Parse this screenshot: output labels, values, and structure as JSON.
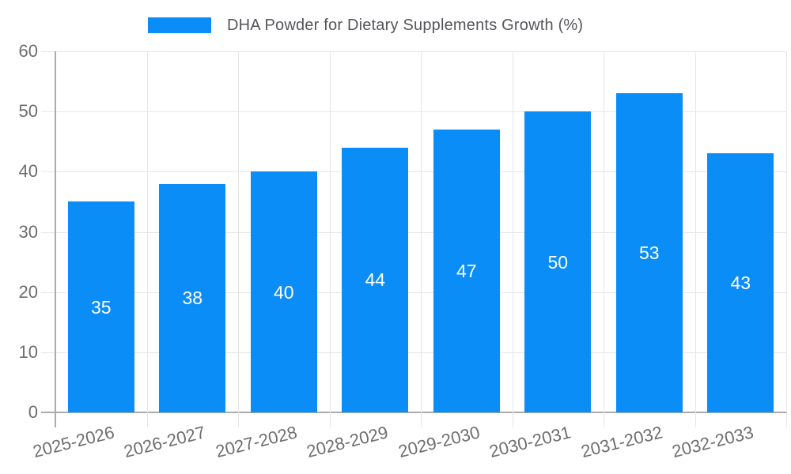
{
  "chart_data": {
    "type": "bar",
    "title": "DHA Powder for Dietary Supplements Growth (%)",
    "legend_entries": [
      "DHA Powder for Dietary Supplements Growth (%)"
    ],
    "legend_position": "top",
    "categories": [
      "2025-2026",
      "2026-2027",
      "2027-2028",
      "2028-2029",
      "2029-2030",
      "2030-2031",
      "2031-2032",
      "2032-2033"
    ],
    "values": [
      35,
      38,
      40,
      44,
      47,
      50,
      53,
      43
    ],
    "xlabel": "",
    "ylabel": "",
    "ylim": [
      0,
      60
    ],
    "yticks": [
      0,
      10,
      20,
      30,
      40,
      50,
      60
    ],
    "grid": true,
    "value_labels_inside_bars": true,
    "bar_color": "#0a8df6",
    "value_label_color": "#ffffff"
  }
}
